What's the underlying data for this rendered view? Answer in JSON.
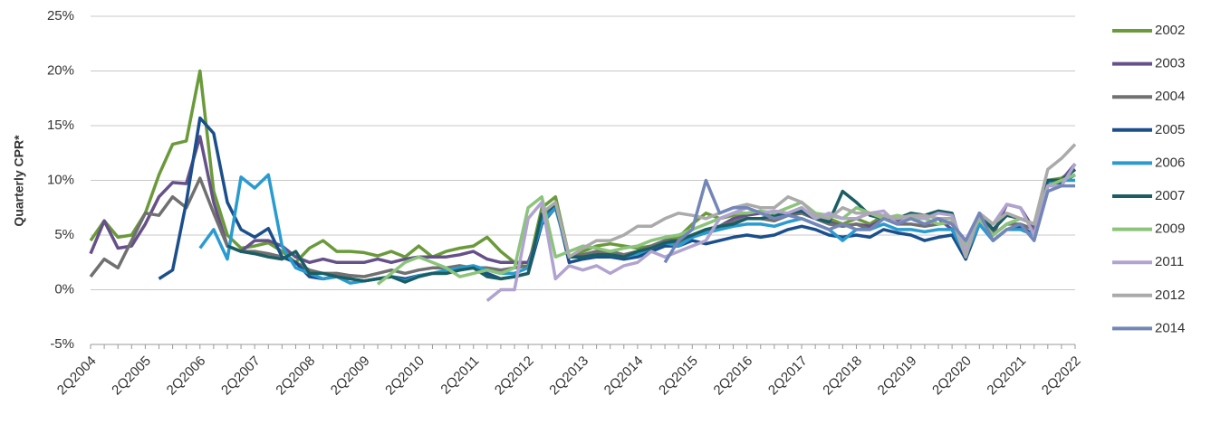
{
  "chart_data": {
    "type": "line",
    "y_label": "Quarterly CPR*",
    "categories": [
      "2Q2004",
      null,
      null,
      null,
      "2Q2005",
      null,
      null,
      null,
      "2Q2006",
      null,
      null,
      null,
      "2Q2007",
      null,
      null,
      null,
      "2Q2008",
      null,
      null,
      null,
      "2Q2009",
      null,
      null,
      null,
      "2Q2010",
      null,
      null,
      null,
      "2Q2011",
      null,
      null,
      null,
      "2Q2012",
      null,
      null,
      null,
      "2Q2013",
      null,
      null,
      null,
      "2Q2014",
      null,
      null,
      null,
      "2Q2015",
      null,
      null,
      null,
      "2Q2016",
      null,
      null,
      null,
      "2Q2017",
      null,
      null,
      null,
      "2Q2018",
      null,
      null,
      null,
      "2Q2019",
      null,
      null,
      null,
      "2Q2020",
      null,
      null,
      null,
      "2Q2021",
      null,
      null,
      null,
      "2Q2022"
    ],
    "ylim": [
      -5,
      25
    ],
    "yticks": [
      {
        "value": -5,
        "label": "-5%"
      },
      {
        "value": 0,
        "label": "0%"
      },
      {
        "value": 5,
        "label": "5%"
      },
      {
        "value": 10,
        "label": "10%"
      },
      {
        "value": 15,
        "label": "15%"
      },
      {
        "value": 20,
        "label": "20%"
      },
      {
        "value": 25,
        "label": "25%"
      }
    ],
    "grid": true,
    "legend": "right",
    "series": [
      {
        "name": "2002",
        "color": "#6a9a3a",
        "values": [
          4.5,
          6.3,
          4.8,
          5.0,
          7.0,
          10.5,
          13.3,
          13.6,
          20.0,
          9.0,
          5.0,
          3.8,
          4.0,
          4.3,
          3.5,
          2.5,
          3.8,
          4.5,
          3.5,
          3.5,
          3.4,
          3.1,
          3.5,
          3.0,
          4.0,
          3.0,
          3.5,
          3.8,
          4.0,
          4.8,
          3.5,
          2.5,
          2.0,
          7.5,
          8.5,
          3.0,
          3.5,
          4.0,
          4.2,
          4.0,
          3.8,
          4.0,
          4.5,
          4.8,
          6.0,
          7.0,
          6.5,
          6.8,
          7.0,
          7.2,
          6.5,
          7.0,
          7.5,
          6.5,
          6.5,
          6.0,
          6.5,
          6.0,
          6.8,
          6.5,
          6.5,
          6.0,
          6.5,
          6.0,
          4.0,
          6.5,
          5.0,
          6.0,
          6.5,
          6.0,
          10.0,
          10.2,
          11.0
        ]
      },
      {
        "name": "2003",
        "color": "#66508a",
        "values": [
          3.3,
          6.3,
          3.8,
          4.0,
          6.0,
          8.5,
          9.8,
          9.7,
          14.0,
          8.0,
          4.0,
          3.5,
          4.5,
          4.5,
          4.0,
          3.0,
          2.5,
          2.8,
          2.5,
          2.5,
          2.5,
          2.8,
          2.5,
          2.8,
          3.0,
          3.0,
          3.0,
          3.2,
          3.5,
          2.8,
          2.5,
          2.5,
          2.5,
          6.0,
          7.5,
          3.0,
          3.2,
          3.5,
          3.5,
          3.2,
          3.5,
          4.0,
          4.5,
          4.5,
          5.0,
          5.5,
          5.8,
          6.5,
          6.8,
          7.0,
          6.5,
          6.8,
          7.0,
          6.5,
          6.2,
          5.8,
          6.0,
          5.8,
          6.5,
          6.2,
          6.5,
          6.0,
          6.5,
          5.5,
          2.8,
          7.0,
          5.0,
          7.8,
          7.5,
          5.5,
          10.0,
          10.0,
          11.5
        ]
      },
      {
        "name": "2004",
        "color": "#707070",
        "values": [
          1.2,
          2.8,
          2.0,
          4.5,
          7.0,
          6.8,
          8.5,
          7.5,
          10.2,
          7.0,
          4.0,
          3.5,
          3.5,
          3.3,
          3.0,
          2.5,
          1.8,
          1.5,
          1.5,
          1.3,
          1.2,
          1.5,
          1.8,
          1.5,
          1.8,
          2.0,
          2.0,
          2.2,
          2.0,
          2.0,
          1.8,
          2.0,
          2.2,
          6.5,
          8.0,
          3.0,
          3.2,
          3.5,
          3.5,
          3.2,
          3.5,
          4.0,
          4.5,
          4.2,
          5.0,
          5.5,
          5.8,
          6.2,
          6.5,
          6.5,
          6.3,
          6.8,
          7.0,
          6.5,
          6.0,
          5.8,
          6.0,
          5.5,
          6.5,
          6.0,
          6.0,
          5.8,
          6.0,
          6.2,
          3.5,
          6.5,
          5.0,
          6.0,
          6.0,
          5.5,
          9.5,
          10.0,
          10.5
        ]
      },
      {
        "name": "2005",
        "color": "#1b4f8c",
        "values": [
          null,
          null,
          null,
          null,
          null,
          1.0,
          1.8,
          8.0,
          15.7,
          14.3,
          8.0,
          5.5,
          4.8,
          5.6,
          3.0,
          2.5,
          1.2,
          1.0,
          1.2,
          1.0,
          0.8,
          1.0,
          1.2,
          1.0,
          1.3,
          1.5,
          1.5,
          1.8,
          2.0,
          1.5,
          1.0,
          1.2,
          1.5,
          6.0,
          7.8,
          2.5,
          2.8,
          3.0,
          3.0,
          2.8,
          3.0,
          3.5,
          4.0,
          4.0,
          4.5,
          4.2,
          4.5,
          4.8,
          5.0,
          4.8,
          5.0,
          5.5,
          5.8,
          5.5,
          5.0,
          4.8,
          5.0,
          4.8,
          5.5,
          5.2,
          5.0,
          4.5,
          4.8,
          5.0,
          2.8,
          6.0,
          4.5,
          5.5,
          5.8,
          5.0,
          9.5,
          9.8,
          10.5
        ]
      },
      {
        "name": "2006",
        "color": "#2a9bd0",
        "values": [
          null,
          null,
          null,
          null,
          null,
          null,
          null,
          null,
          3.8,
          5.5,
          2.8,
          10.3,
          9.3,
          10.5,
          4.0,
          2.0,
          1.5,
          1.0,
          1.2,
          0.6,
          0.8,
          1.0,
          1.2,
          0.8,
          1.3,
          1.5,
          1.8,
          2.0,
          2.2,
          1.8,
          1.5,
          1.5,
          2.0,
          6.2,
          7.5,
          3.0,
          3.0,
          3.2,
          3.2,
          3.0,
          3.3,
          3.8,
          4.3,
          4.0,
          4.8,
          5.2,
          5.5,
          5.8,
          6.0,
          6.0,
          5.8,
          6.2,
          6.5,
          6.0,
          5.5,
          4.5,
          5.5,
          5.5,
          6.0,
          5.5,
          5.5,
          5.3,
          5.5,
          5.5,
          3.2,
          6.0,
          4.5,
          5.5,
          5.5,
          5.0,
          9.8,
          10.0,
          10.0
        ]
      },
      {
        "name": "2007",
        "color": "#1a5e63",
        "values": [
          null,
          null,
          null,
          null,
          null,
          null,
          null,
          null,
          null,
          null,
          4.0,
          3.5,
          3.3,
          3.0,
          2.8,
          3.5,
          1.5,
          1.5,
          1.2,
          1.0,
          0.8,
          1.0,
          1.2,
          0.7,
          1.2,
          1.5,
          1.5,
          1.8,
          2.0,
          1.2,
          1.0,
          1.2,
          1.5,
          7.0,
          7.8,
          3.0,
          3.0,
          3.2,
          3.2,
          3.0,
          3.5,
          3.8,
          4.3,
          4.5,
          5.0,
          5.5,
          5.8,
          6.0,
          6.5,
          6.5,
          6.8,
          7.0,
          7.2,
          6.5,
          6.2,
          9.0,
          8.0,
          6.8,
          6.5,
          6.5,
          7.0,
          6.8,
          7.2,
          7.0,
          3.0,
          7.0,
          5.5,
          6.8,
          6.5,
          6.0,
          10.0,
          10.0,
          11.0
        ]
      },
      {
        "name": "2009",
        "color": "#8bc47a",
        "values": [
          null,
          null,
          null,
          null,
          null,
          null,
          null,
          null,
          null,
          null,
          null,
          null,
          null,
          null,
          null,
          null,
          null,
          null,
          null,
          null,
          null,
          0.5,
          1.5,
          2.5,
          3.0,
          2.5,
          2.0,
          1.2,
          1.5,
          1.8,
          1.5,
          2.0,
          7.5,
          8.5,
          3.0,
          3.5,
          4.0,
          3.8,
          3.5,
          3.8,
          4.0,
          4.5,
          4.8,
          5.0,
          5.5,
          6.0,
          6.5,
          7.0,
          7.0,
          7.2,
          7.0,
          7.5,
          8.0,
          7.0,
          6.8,
          6.5,
          7.5,
          7.0,
          6.5,
          6.8,
          6.5,
          6.5,
          6.0,
          6.2,
          4.0,
          6.5,
          5.0,
          6.0,
          6.5,
          6.0,
          9.5,
          10.0,
          10.5
        ]
      },
      {
        "name": "2011",
        "color": "#b0a3cf",
        "values": [
          null,
          null,
          null,
          null,
          null,
          null,
          null,
          null,
          null,
          null,
          null,
          null,
          null,
          null,
          null,
          null,
          null,
          null,
          null,
          null,
          null,
          null,
          null,
          null,
          null,
          null,
          null,
          null,
          null,
          -1.0,
          0.0,
          0.0,
          6.5,
          8.0,
          1.0,
          2.2,
          1.8,
          2.2,
          1.5,
          2.2,
          2.5,
          3.5,
          3.0,
          3.5,
          4.0,
          4.5,
          6.5,
          7.0,
          7.5,
          7.0,
          7.2,
          7.0,
          7.5,
          6.5,
          7.0,
          6.5,
          6.5,
          7.0,
          7.2,
          6.0,
          6.8,
          6.5,
          7.0,
          6.8,
          3.5,
          7.0,
          6.0,
          7.8,
          7.5,
          5.0,
          9.5,
          9.5,
          11.5
        ]
      },
      {
        "name": "2012",
        "color": "#aaaaaa",
        "values": [
          null,
          null,
          null,
          null,
          null,
          null,
          null,
          null,
          null,
          null,
          null,
          null,
          null,
          null,
          null,
          null,
          null,
          null,
          null,
          null,
          null,
          null,
          null,
          null,
          null,
          null,
          null,
          null,
          null,
          null,
          null,
          null,
          null,
          7.0,
          8.0,
          3.0,
          3.8,
          4.5,
          4.5,
          5.0,
          5.8,
          5.8,
          6.5,
          7.0,
          6.8,
          6.5,
          7.0,
          7.5,
          7.8,
          7.5,
          7.5,
          8.5,
          8.0,
          6.8,
          6.5,
          7.5,
          7.0,
          7.0,
          6.8,
          6.5,
          6.8,
          6.8,
          6.5,
          6.5,
          3.0,
          7.0,
          6.0,
          7.0,
          6.5,
          6.0,
          11.0,
          12.0,
          13.3
        ]
      },
      {
        "name": "2014",
        "color": "#7386b8",
        "values": [
          null,
          null,
          null,
          null,
          null,
          null,
          null,
          null,
          null,
          null,
          null,
          null,
          null,
          null,
          null,
          null,
          null,
          null,
          null,
          null,
          null,
          null,
          null,
          null,
          null,
          null,
          null,
          null,
          null,
          null,
          null,
          null,
          null,
          null,
          null,
          null,
          null,
          null,
          null,
          null,
          null,
          null,
          2.5,
          4.5,
          5.5,
          10.0,
          7.0,
          7.5,
          7.5,
          7.0,
          6.5,
          6.8,
          6.5,
          6.0,
          5.5,
          6.0,
          5.5,
          5.5,
          6.5,
          6.0,
          6.5,
          6.0,
          6.5,
          6.0,
          4.5,
          7.0,
          4.5,
          5.5,
          6.0,
          4.5,
          9.0,
          9.5,
          9.5
        ]
      }
    ]
  }
}
